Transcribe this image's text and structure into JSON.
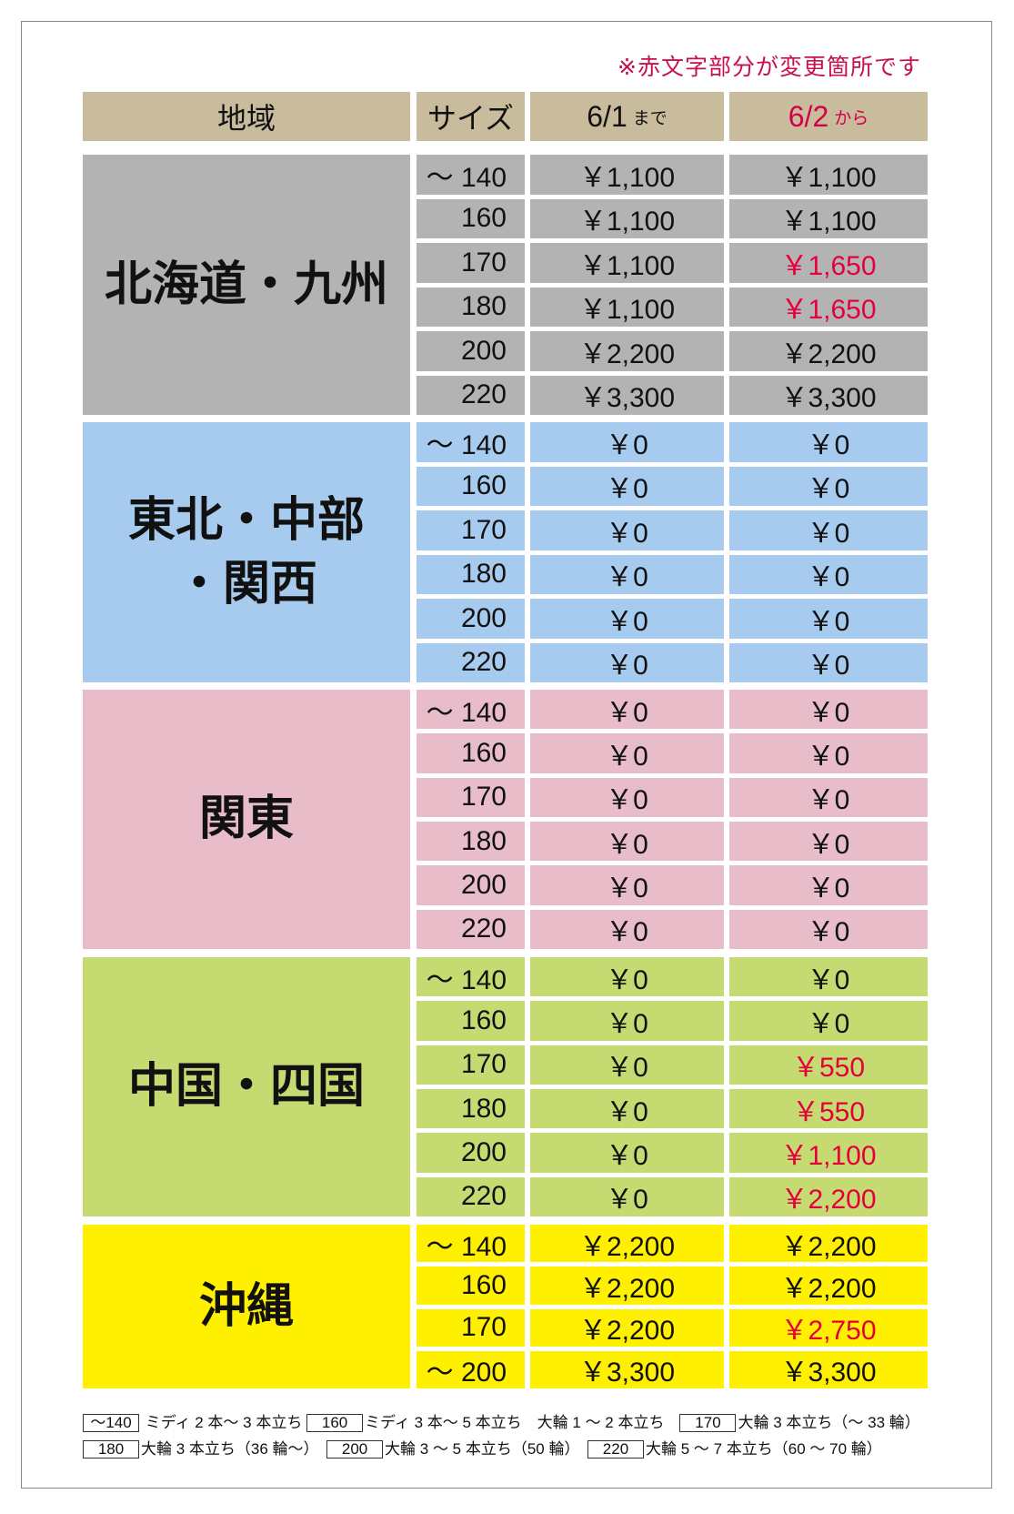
{
  "note": "※赤文字部分が変更箇所です",
  "header": {
    "region": "地域",
    "size": "サイズ",
    "before_date": "6/1",
    "before_suffix": "まで",
    "after_date": "6/2",
    "after_suffix": "から"
  },
  "colors": {
    "header": "#c9bc9c",
    "changed": "#e4003c",
    "note": "#c8104f"
  },
  "sections": [
    {
      "region": "北海道・九州",
      "color": "#b3b3b3",
      "rows": [
        {
          "size": "～ 140",
          "before": "￥1,100",
          "after": "￥1,100",
          "changed": false
        },
        {
          "size": "160",
          "before": "￥1,100",
          "after": "￥1,100",
          "changed": false
        },
        {
          "size": "170",
          "before": "￥1,100",
          "after": "￥1,650",
          "changed": true
        },
        {
          "size": "180",
          "before": "￥1,100",
          "after": "￥1,650",
          "changed": true
        },
        {
          "size": "200",
          "before": "￥2,200",
          "after": "￥2,200",
          "changed": false
        },
        {
          "size": "220",
          "before": "￥3,300",
          "after": "￥3,300",
          "changed": false
        }
      ]
    },
    {
      "region": "東北・中部\n・関西",
      "color": "#a6cbee",
      "rows": [
        {
          "size": "～ 140",
          "before": "￥0",
          "after": "￥0",
          "changed": false
        },
        {
          "size": "160",
          "before": "￥0",
          "after": "￥0",
          "changed": false
        },
        {
          "size": "170",
          "before": "￥0",
          "after": "￥0",
          "changed": false
        },
        {
          "size": "180",
          "before": "￥0",
          "after": "￥0",
          "changed": false
        },
        {
          "size": "200",
          "before": "￥0",
          "after": "￥0",
          "changed": false
        },
        {
          "size": "220",
          "before": "￥0",
          "after": "￥0",
          "changed": false
        }
      ]
    },
    {
      "region": "関東",
      "color": "#e8bdc9",
      "rows": [
        {
          "size": "～ 140",
          "before": "￥0",
          "after": "￥0",
          "changed": false
        },
        {
          "size": "160",
          "before": "￥0",
          "after": "￥0",
          "changed": false
        },
        {
          "size": "170",
          "before": "￥0",
          "after": "￥0",
          "changed": false
        },
        {
          "size": "180",
          "before": "￥0",
          "after": "￥0",
          "changed": false
        },
        {
          "size": "200",
          "before": "￥0",
          "after": "￥0",
          "changed": false
        },
        {
          "size": "220",
          "before": "￥0",
          "after": "￥0",
          "changed": false
        }
      ]
    },
    {
      "region": "中国・四国",
      "color": "#c6da72",
      "rows": [
        {
          "size": "～ 140",
          "before": "￥0",
          "after": "￥0",
          "changed": false
        },
        {
          "size": "160",
          "before": "￥0",
          "after": "￥0",
          "changed": false
        },
        {
          "size": "170",
          "before": "￥0",
          "after": "￥550",
          "changed": true
        },
        {
          "size": "180",
          "before": "￥0",
          "after": "￥550",
          "changed": true
        },
        {
          "size": "200",
          "before": "￥0",
          "after": "￥1,100",
          "changed": true
        },
        {
          "size": "220",
          "before": "￥0",
          "after": "￥2,200",
          "changed": true
        }
      ]
    },
    {
      "region": "沖縄",
      "color": "#fff000",
      "rows": [
        {
          "size": "～ 140",
          "before": "￥2,200",
          "after": "￥2,200",
          "changed": false
        },
        {
          "size": "160",
          "before": "￥2,200",
          "after": "￥2,200",
          "changed": false
        },
        {
          "size": "170",
          "before": "￥2,200",
          "after": "￥2,750",
          "changed": true
        },
        {
          "size": "～ 200",
          "before": "￥3,300",
          "after": "￥3,300",
          "changed": false
        }
      ]
    }
  ],
  "footnotes": [
    [
      {
        "box": "～140",
        "text": " ミディ 2 本～ 3 本立ち "
      },
      {
        "box": "160",
        "text": "ミディ 3 本～ 5 本立ち　大輪 1 ～ 2 本立ち　"
      },
      {
        "box": "170",
        "text": "大輪 3 本立ち（～ 33 輪）"
      }
    ],
    [
      {
        "box": "180",
        "text": "大輪 3 本立ち（36 輪～）　"
      },
      {
        "box": "200",
        "text": "大輪 3 ～ 5 本立ち（50 輪）　"
      },
      {
        "box": "220",
        "text": "大輪 5 ～ 7 本立ち（60 ～ 70 輪）"
      }
    ]
  ]
}
